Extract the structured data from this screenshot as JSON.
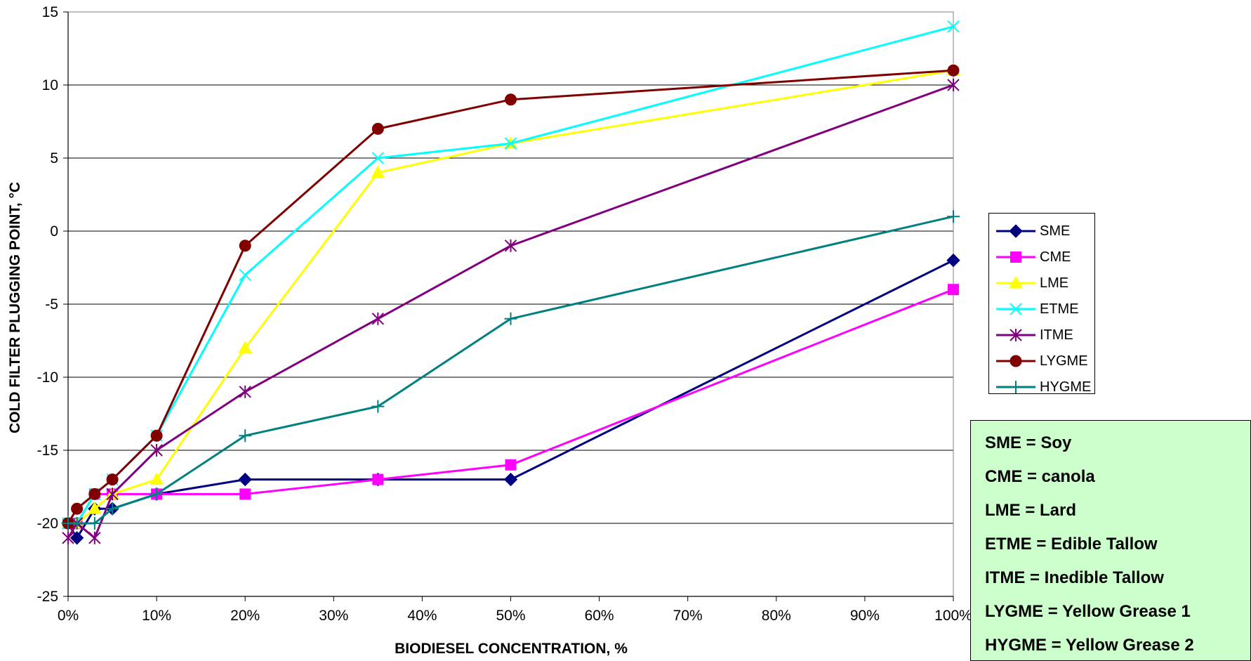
{
  "chart_data": {
    "type": "line",
    "xlabel": "BIODIESEL CONCENTRATION, %",
    "ylabel": "COLD FILTER PLUGGING POINT, °C",
    "x": [
      0,
      1,
      3,
      5,
      10,
      20,
      35,
      50,
      100
    ],
    "xlim": [
      0,
      100
    ],
    "ylim": [
      -25,
      15
    ],
    "x_ticks": [
      0,
      10,
      20,
      30,
      40,
      50,
      60,
      70,
      80,
      90,
      100
    ],
    "x_tick_labels": [
      "0%",
      "10%",
      "20%",
      "30%",
      "40%",
      "50%",
      "60%",
      "70%",
      "80%",
      "90%",
      "100%"
    ],
    "y_ticks": [
      -25,
      -20,
      -15,
      -10,
      -5,
      0,
      5,
      10,
      15
    ],
    "y_tick_labels": [
      "-25",
      "-20",
      "-15",
      "-10",
      "-5",
      "0",
      "5",
      "10",
      "15"
    ],
    "grid": "horizontal",
    "legend_position": "right",
    "series": [
      {
        "name": "SME",
        "color": "#000080",
        "marker": "diamond",
        "values": [
          -20,
          -21,
          -19,
          -19,
          -18,
          -17,
          -17,
          -17,
          -2
        ]
      },
      {
        "name": "CME",
        "color": "#ff00ff",
        "marker": "square",
        "values": [
          -20,
          -20,
          -18,
          -18,
          -18,
          -18,
          -17,
          -16,
          -4
        ]
      },
      {
        "name": "LME",
        "color": "#ffff00",
        "marker": "triangle",
        "values": [
          -20,
          -20,
          -19,
          -18,
          -17,
          -8,
          4,
          6,
          11
        ]
      },
      {
        "name": "ETME",
        "color": "#00ffff",
        "marker": "x",
        "values": [
          -20,
          -20,
          -18,
          -17,
          -14,
          -3,
          5,
          6,
          14
        ]
      },
      {
        "name": "ITME",
        "color": "#800080",
        "marker": "star",
        "values": [
          -21,
          -20,
          -21,
          -18,
          -15,
          -11,
          -6,
          -1,
          10
        ]
      },
      {
        "name": "LYGME",
        "color": "#800000",
        "marker": "circle",
        "values": [
          -20,
          -19,
          -18,
          -17,
          -14,
          -1,
          7,
          9,
          11
        ]
      },
      {
        "name": "HYGME",
        "color": "#008080",
        "marker": "plus",
        "values": [
          -20,
          -20,
          -20,
          -19,
          -18,
          -14,
          -12,
          -6,
          1
        ]
      }
    ]
  },
  "notes": [
    "SME = Soy",
    "CME = canola",
    "LME = Lard",
    "ETME = Edible Tallow",
    "ITME = Inedible Tallow",
    "LYGME = Yellow Grease 1",
    "HYGME = Yellow Grease 2"
  ]
}
